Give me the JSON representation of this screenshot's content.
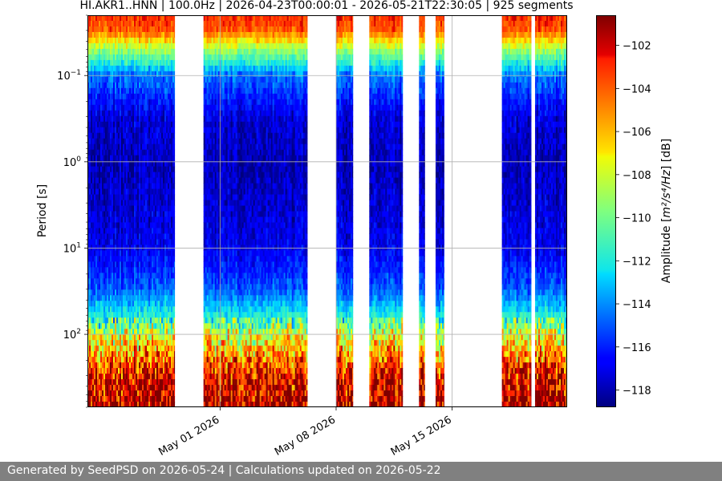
{
  "chart_data": {
    "type": "heatmap",
    "title": "HI.AKR1..HNN | 100.0Hz | 2026-04-23T00:00:01 - 2026-05-21T22:30:05 | 925 segments",
    "ylabel": "Period [s]",
    "xlabel": "",
    "y_scale": "log",
    "y_inverted": true,
    "ylim_seconds": [
      0.02,
      700
    ],
    "xlim": [
      "2026-04-23T00:00:00",
      "2026-05-21T22:30:00"
    ],
    "y_ticks": [
      {
        "value": 0.1,
        "mant": "10",
        "exp": "−1"
      },
      {
        "value": 1,
        "mant": "10",
        "exp": "0"
      },
      {
        "value": 10,
        "mant": "10",
        "exp": "1"
      },
      {
        "value": 100,
        "mant": "10",
        "exp": "2"
      }
    ],
    "x_ticks": [
      {
        "date": "2026-05-01",
        "label": "May 01 2026"
      },
      {
        "date": "2026-05-08",
        "label": "May 08 2026"
      },
      {
        "date": "2026-05-15",
        "label": "May 15 2026"
      }
    ],
    "grid": true,
    "colormap": "jet",
    "colorbar": {
      "label_prefix": "Amplitude [",
      "label_math": "m²/s⁴/Hz",
      "label_suffix": "] [dB]",
      "range": [
        -118.8,
        -100.6
      ],
      "ticks": [
        "−102",
        "−104",
        "−106",
        "−108",
        "−110",
        "−112",
        "−114",
        "−116",
        "−118"
      ],
      "tick_values": [
        -102,
        -104,
        -106,
        -108,
        -110,
        -112,
        -114,
        -116,
        -118
      ]
    },
    "data_segments": [
      {
        "start": "2026-04-23T00:00:00",
        "end": "2026-04-28T06:00:00"
      },
      {
        "start": "2026-04-30T00:00:00",
        "end": "2026-05-06T06:00:00"
      },
      {
        "start": "2026-05-08T00:00:00",
        "end": "2026-05-09T00:00:00"
      },
      {
        "start": "2026-05-10T00:00:00",
        "end": "2026-05-12T00:00:00"
      },
      {
        "start": "2026-05-13T00:00:00",
        "end": "2026-05-13T08:00:00"
      },
      {
        "start": "2026-05-14T00:00:00",
        "end": "2026-05-14T12:00:00"
      },
      {
        "start": "2026-05-18T00:00:00",
        "end": "2026-05-19T18:00:00"
      },
      {
        "start": "2026-05-20T00:00:00",
        "end": "2026-05-21T22:30:00"
      }
    ],
    "amplitude_profile": [
      {
        "period": 0.02,
        "db": -103
      },
      {
        "period": 0.03,
        "db": -104
      },
      {
        "period": 0.05,
        "db": -109
      },
      {
        "period": 0.1,
        "db": -114.5
      },
      {
        "period": 0.3,
        "db": -117.3
      },
      {
        "period": 1,
        "db": -118
      },
      {
        "period": 3,
        "db": -117.5
      },
      {
        "period": 10,
        "db": -117
      },
      {
        "period": 30,
        "db": -115
      },
      {
        "period": 60,
        "db": -112
      },
      {
        "period": 100,
        "db": -108
      },
      {
        "period": 200,
        "db": -104.5
      },
      {
        "period": 300,
        "db": -102.5
      },
      {
        "period": 700,
        "db": -101.3
      }
    ]
  },
  "footer": {
    "text": "Generated by SeedPSD on 2026-05-24 | Calculations updated on 2026-05-22"
  }
}
